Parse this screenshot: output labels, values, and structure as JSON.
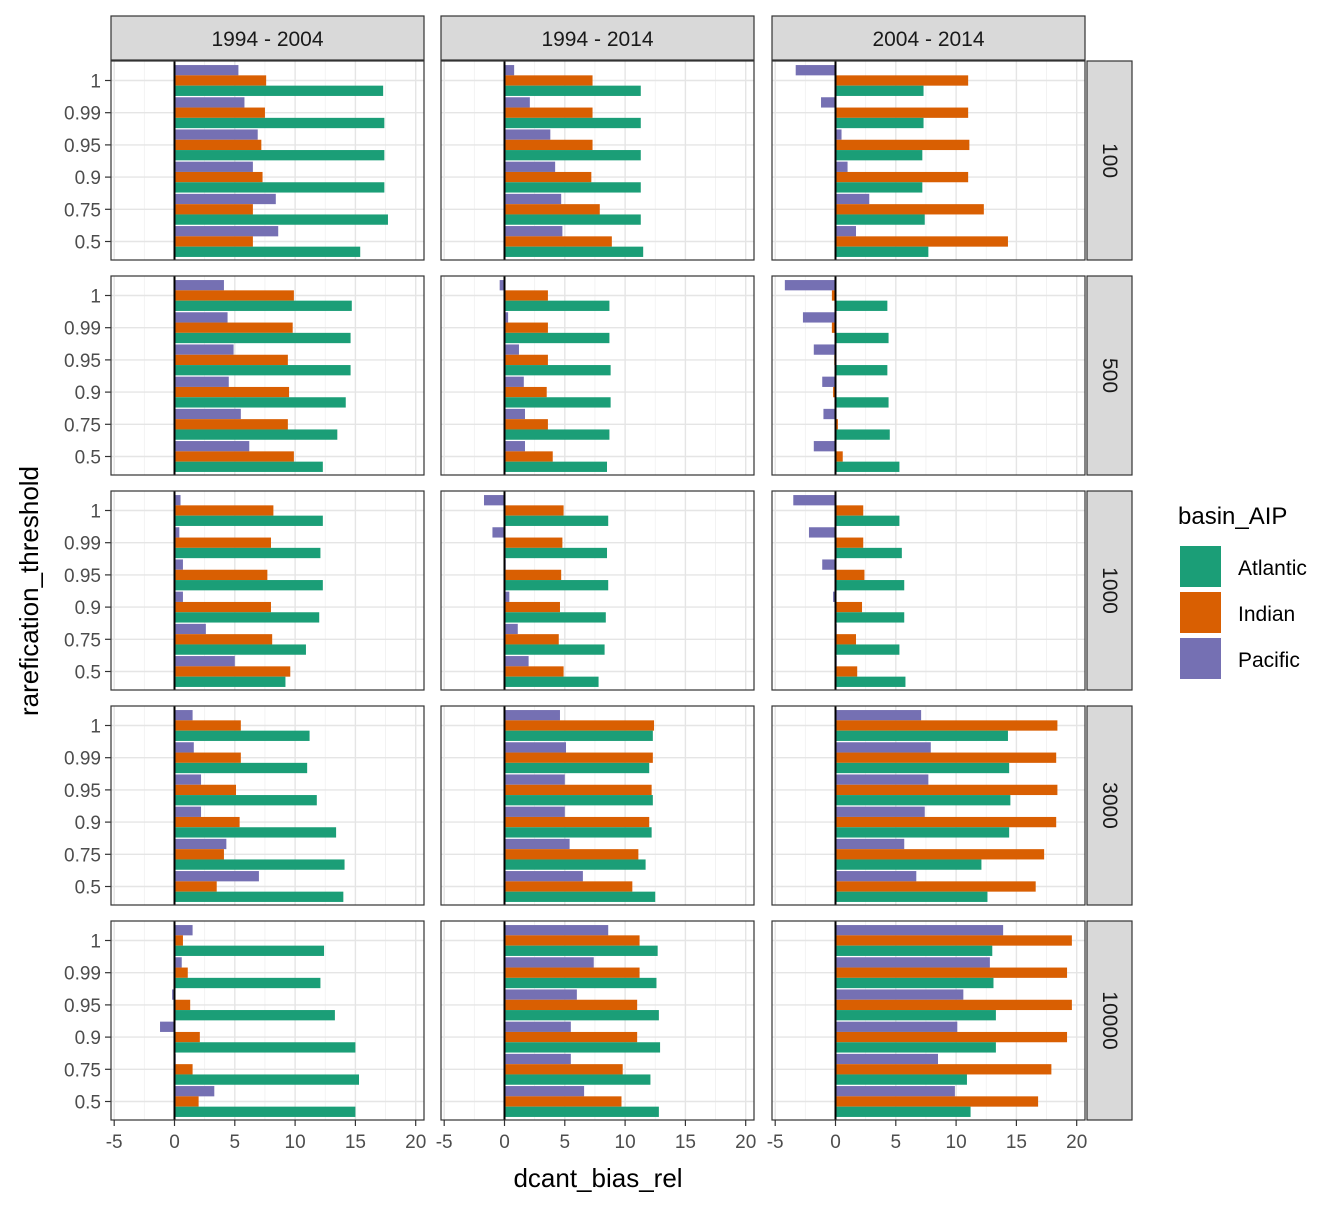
{
  "chart_data": {
    "type": "bar",
    "orientation": "horizontal",
    "xlabel": "dcant_bias_rel",
    "ylabel": "rarefication_threshold",
    "xlim": [
      -5,
      20
    ],
    "x_ticks": [
      "-5",
      "0",
      "5",
      "10",
      "15",
      "20"
    ],
    "y_categories": [
      "1",
      "0.99",
      "0.95",
      "0.9",
      "0.75",
      "0.5"
    ],
    "facet_columns": [
      "1994 - 2004",
      "1994 - 2014",
      "2004 - 2014"
    ],
    "facet_rows": [
      "100",
      "500",
      "1000",
      "3000",
      "10000"
    ],
    "legend": {
      "title": "basin_AIP",
      "position": "right",
      "entries": [
        "Atlantic",
        "Indian",
        "Pacific"
      ]
    },
    "series_colors": {
      "Atlantic": "#1b9e77",
      "Indian": "#d95f02",
      "Pacific": "#7570b3"
    },
    "grid": true,
    "panels": [
      {
        "row": "100",
        "col": "1994 - 2004",
        "Atlantic": [
          17.3,
          17.4,
          17.4,
          17.4,
          17.7,
          15.4
        ],
        "Indian": [
          7.6,
          7.5,
          7.2,
          7.3,
          6.5,
          6.5
        ],
        "Pacific": [
          5.3,
          5.8,
          6.9,
          6.5,
          8.4,
          8.6
        ]
      },
      {
        "row": "100",
        "col": "1994 - 2014",
        "Atlantic": [
          11.3,
          11.3,
          11.3,
          11.3,
          11.3,
          11.5
        ],
        "Indian": [
          7.3,
          7.3,
          7.3,
          7.2,
          7.9,
          8.9
        ],
        "Pacific": [
          0.8,
          2.1,
          3.8,
          4.2,
          4.7,
          4.8
        ]
      },
      {
        "row": "100",
        "col": "2004 - 2014",
        "Atlantic": [
          7.3,
          7.3,
          7.2,
          7.2,
          7.4,
          7.7
        ],
        "Indian": [
          11.0,
          11.0,
          11.1,
          11.0,
          12.3,
          14.3
        ],
        "Pacific": [
          -3.3,
          -1.2,
          0.5,
          1.0,
          2.8,
          1.7
        ]
      },
      {
        "row": "500",
        "col": "1994 - 2004",
        "Atlantic": [
          14.7,
          14.6,
          14.6,
          14.2,
          13.5,
          12.3
        ],
        "Indian": [
          9.9,
          9.8,
          9.4,
          9.5,
          9.4,
          9.9
        ],
        "Pacific": [
          4.1,
          4.4,
          4.9,
          4.5,
          5.5,
          6.2
        ]
      },
      {
        "row": "500",
        "col": "1994 - 2014",
        "Atlantic": [
          8.7,
          8.7,
          8.8,
          8.8,
          8.7,
          8.5
        ],
        "Indian": [
          3.6,
          3.6,
          3.6,
          3.5,
          3.6,
          4.0
        ],
        "Pacific": [
          -0.4,
          0.3,
          1.2,
          1.6,
          1.7,
          1.7
        ]
      },
      {
        "row": "500",
        "col": "2004 - 2014",
        "Atlantic": [
          4.3,
          4.4,
          4.3,
          4.4,
          4.5,
          5.3
        ],
        "Indian": [
          -0.3,
          -0.3,
          -0.1,
          -0.2,
          0.2,
          0.6
        ],
        "Pacific": [
          -4.2,
          -2.7,
          -1.8,
          -1.1,
          -1.0,
          -1.8
        ]
      },
      {
        "row": "1000",
        "col": "1994 - 2004",
        "Atlantic": [
          12.3,
          12.1,
          12.3,
          12.0,
          10.9,
          9.2
        ],
        "Indian": [
          8.2,
          8.0,
          7.7,
          8.0,
          8.1,
          9.6
        ],
        "Pacific": [
          0.5,
          0.4,
          0.7,
          0.7,
          2.6,
          5.0
        ]
      },
      {
        "row": "1000",
        "col": "1994 - 2014",
        "Atlantic": [
          8.6,
          8.5,
          8.6,
          8.4,
          8.3,
          7.8
        ],
        "Indian": [
          4.9,
          4.8,
          4.7,
          4.6,
          4.5,
          4.9
        ],
        "Pacific": [
          -1.7,
          -1.0,
          0.1,
          0.4,
          1.1,
          2.0
        ]
      },
      {
        "row": "1000",
        "col": "2004 - 2014",
        "Atlantic": [
          5.3,
          5.5,
          5.7,
          5.7,
          5.3,
          5.8
        ],
        "Indian": [
          2.3,
          2.3,
          2.4,
          2.2,
          1.7,
          1.8
        ],
        "Pacific": [
          -3.5,
          -2.2,
          -1.1,
          -0.2,
          0.1,
          0.1
        ]
      },
      {
        "row": "3000",
        "col": "1994 - 2004",
        "Atlantic": [
          11.2,
          11.0,
          11.8,
          13.4,
          14.1,
          14.0
        ],
        "Indian": [
          5.5,
          5.5,
          5.1,
          5.4,
          4.1,
          3.5
        ],
        "Pacific": [
          1.5,
          1.6,
          2.2,
          2.2,
          4.3,
          7.0
        ]
      },
      {
        "row": "3000",
        "col": "1994 - 2014",
        "Atlantic": [
          12.3,
          12.0,
          12.3,
          12.2,
          11.7,
          12.5
        ],
        "Indian": [
          12.4,
          12.3,
          12.2,
          12.0,
          11.1,
          10.6
        ],
        "Pacific": [
          4.6,
          5.1,
          5.0,
          5.0,
          5.4,
          6.5
        ]
      },
      {
        "row": "3000",
        "col": "2004 - 2014",
        "Atlantic": [
          14.3,
          14.4,
          14.5,
          14.4,
          12.1,
          12.6
        ],
        "Indian": [
          18.4,
          18.3,
          18.4,
          18.3,
          17.3,
          16.6
        ],
        "Pacific": [
          7.1,
          7.9,
          7.7,
          7.4,
          5.7,
          6.7
        ]
      },
      {
        "row": "10000",
        "col": "1994 - 2004",
        "Atlantic": [
          12.4,
          12.1,
          13.3,
          15.0,
          15.3,
          15.0
        ],
        "Indian": [
          0.7,
          1.1,
          1.3,
          2.1,
          1.5,
          2.0
        ],
        "Pacific": [
          1.5,
          0.6,
          -0.2,
          -1.2,
          0.1,
          3.3
        ]
      },
      {
        "row": "10000",
        "col": "1994 - 2014",
        "Atlantic": [
          12.7,
          12.6,
          12.8,
          12.9,
          12.1,
          12.8
        ],
        "Indian": [
          11.2,
          11.2,
          11.0,
          11.0,
          9.8,
          9.7
        ],
        "Pacific": [
          8.6,
          7.4,
          6.0,
          5.5,
          5.5,
          6.6
        ]
      },
      {
        "row": "10000",
        "col": "2004 - 2014",
        "Atlantic": [
          13.0,
          13.1,
          13.3,
          13.3,
          10.9,
          11.2
        ],
        "Indian": [
          19.6,
          19.2,
          19.6,
          19.2,
          17.9,
          16.8
        ],
        "Pacific": [
          13.9,
          12.8,
          10.6,
          10.1,
          8.5,
          9.9
        ]
      }
    ]
  }
}
